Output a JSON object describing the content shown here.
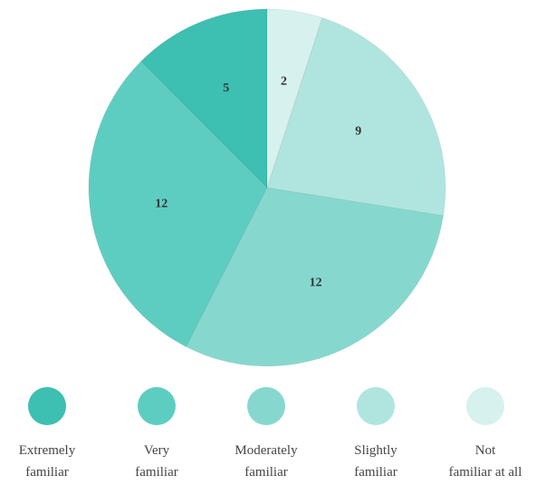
{
  "chart_data": {
    "type": "pie",
    "categories": [
      "Extremely familiar",
      "Very familiar",
      "Moderately familiar",
      "Slightly familiar",
      "Not familiar at all"
    ],
    "values": [
      5,
      12,
      12,
      9,
      2
    ],
    "colors": [
      "#3dbfb1",
      "#5ecdc1",
      "#86d8cf",
      "#b0e5df",
      "#d6f1ee"
    ],
    "legend": "bottom"
  }
}
